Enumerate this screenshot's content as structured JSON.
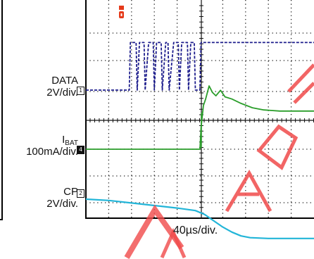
{
  "channels": [
    {
      "marker": "1",
      "name": "DATA",
      "scale": "2V/div.",
      "color": "#1c1c8c"
    },
    {
      "marker": "4",
      "name_main": "I",
      "name_sub": "BAT",
      "scale": "100mA/div.",
      "color": "#2a9d2a"
    },
    {
      "marker": "2",
      "name": "CP",
      "scale": "2V/div.",
      "color": "#22b5d8"
    }
  ],
  "timebase": "40µs/div.",
  "trigger_marker_color": "#e53a1a",
  "chart_data": {
    "type": "line",
    "title": "",
    "xlabel": "40µs/div.",
    "ylabel": "",
    "x_divisions": 10,
    "y_divisions": 8,
    "grid": "dotted",
    "x_unit": "div",
    "series": [
      {
        "name": "DATA",
        "color": "#1c1c8c",
        "note_values": "voltage in divisions above channel baseline (2V/div)",
        "points": [
          [
            0,
            0
          ],
          [
            1.9,
            0
          ],
          [
            1.95,
            2.6
          ],
          [
            2.2,
            2.6
          ],
          [
            2.25,
            0
          ],
          [
            2.35,
            2.6
          ],
          [
            2.55,
            2.6
          ],
          [
            2.6,
            0
          ],
          [
            2.75,
            2.6
          ],
          [
            2.95,
            2.6
          ],
          [
            3.0,
            0
          ],
          [
            3.1,
            2.6
          ],
          [
            3.3,
            2.6
          ],
          [
            3.35,
            0
          ],
          [
            3.5,
            2.6
          ],
          [
            3.6,
            2.6
          ],
          [
            3.65,
            0
          ],
          [
            3.85,
            2.6
          ],
          [
            4.05,
            2.6
          ],
          [
            4.1,
            0
          ],
          [
            4.2,
            2.6
          ],
          [
            4.45,
            2.6
          ],
          [
            4.5,
            0
          ],
          [
            4.6,
            2.6
          ],
          [
            4.75,
            2.6
          ],
          [
            4.8,
            0
          ],
          [
            5.0,
            0
          ],
          [
            5.05,
            2.6
          ],
          [
            10,
            2.6
          ]
        ]
      },
      {
        "name": "IBAT",
        "color": "#2a9d2a",
        "note_values": "current in divisions relative to IBAT baseline (100mA/div)",
        "points": [
          [
            0,
            0
          ],
          [
            5.0,
            0
          ],
          [
            5.05,
            1.0
          ],
          [
            5.15,
            2.0
          ],
          [
            5.25,
            2.3
          ],
          [
            5.4,
            2.9
          ],
          [
            5.55,
            2.6
          ],
          [
            5.7,
            2.45
          ],
          [
            5.9,
            2.7
          ],
          [
            6.1,
            2.4
          ],
          [
            6.4,
            2.3
          ],
          [
            6.8,
            2.1
          ],
          [
            7.3,
            1.9
          ],
          [
            7.8,
            1.8
          ],
          [
            8.5,
            1.75
          ],
          [
            10,
            1.75
          ]
        ]
      },
      {
        "name": "CP",
        "color": "#22b5d8",
        "note_values": "voltage in divisions relative to channel baseline (2V/div)",
        "points": [
          [
            0,
            0
          ],
          [
            1.0,
            -0.05
          ],
          [
            2.0,
            -0.15
          ],
          [
            3.0,
            -0.25
          ],
          [
            4.0,
            -0.35
          ],
          [
            4.8,
            -0.45
          ],
          [
            5.2,
            -0.6
          ],
          [
            5.6,
            -0.85
          ],
          [
            6.0,
            -1.1
          ],
          [
            6.4,
            -1.3
          ],
          [
            6.8,
            -1.45
          ],
          [
            7.2,
            -1.52
          ],
          [
            8.0,
            -1.55
          ],
          [
            10,
            -1.55
          ]
        ]
      }
    ]
  }
}
